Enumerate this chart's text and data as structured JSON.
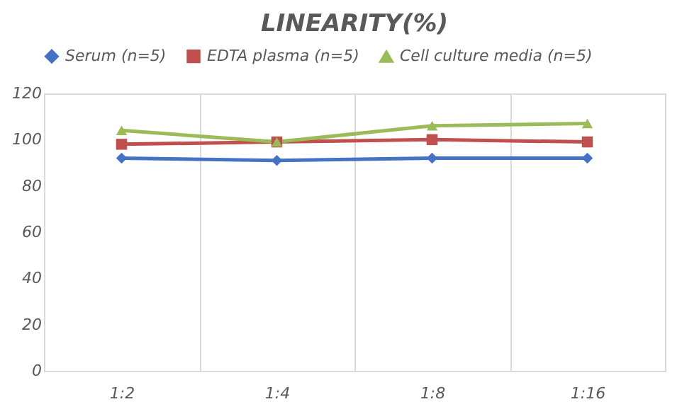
{
  "chart_data": {
    "type": "line",
    "title": "LINEARITY(%)",
    "categories": [
      "1:2",
      "1:4",
      "1:8",
      "1:16"
    ],
    "series": [
      {
        "name": "Serum (n=5)",
        "color": "#4472c4",
        "values": [
          92,
          91,
          92,
          92
        ],
        "marker": "diamond"
      },
      {
        "name": "EDTA plasma (n=5)",
        "color": "#c0504d",
        "values": [
          98,
          99,
          100,
          99
        ],
        "marker": "square"
      },
      {
        "name": "Cell culture media (n=5)",
        "color": "#9bbb59",
        "values": [
          104,
          99,
          106,
          107
        ],
        "marker": "triangle"
      }
    ],
    "ylim": [
      0,
      120
    ],
    "yticks": [
      0,
      20,
      40,
      60,
      80,
      100,
      120
    ],
    "grid": "x",
    "legend": "top"
  }
}
